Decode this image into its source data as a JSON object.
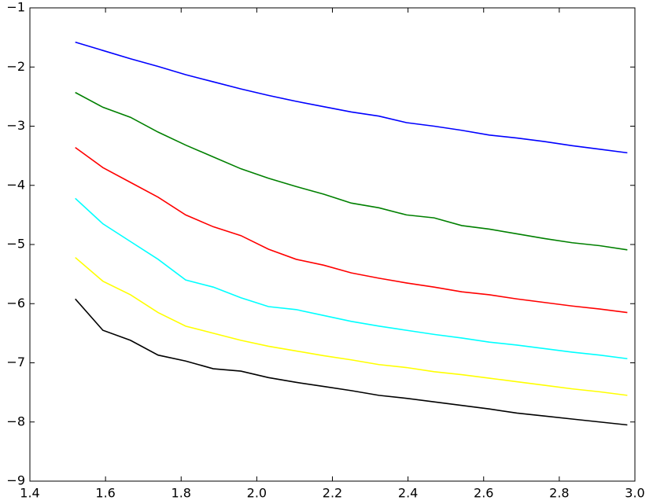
{
  "chart_data": {
    "type": "line",
    "x": [
      1.52,
      1.593,
      1.666,
      1.739,
      1.812,
      1.885,
      1.958,
      2.031,
      2.104,
      2.177,
      2.25,
      2.323,
      2.396,
      2.469,
      2.542,
      2.615,
      2.688,
      2.761,
      2.834,
      2.907,
      2.98
    ],
    "series": [
      {
        "color": "#0000ff",
        "values": [
          -1.58,
          -1.72,
          -1.86,
          -1.99,
          -2.13,
          -2.25,
          -2.37,
          -2.48,
          -2.58,
          -2.67,
          -2.76,
          -2.83,
          -2.94,
          -3.0,
          -3.07,
          -3.15,
          -3.2,
          -3.26,
          -3.33,
          -3.39,
          -3.45
        ]
      },
      {
        "color": "#008000",
        "values": [
          -2.43,
          -2.68,
          -2.85,
          -3.1,
          -3.32,
          -3.52,
          -3.72,
          -3.88,
          -4.02,
          -4.15,
          -4.3,
          -4.38,
          -4.5,
          -4.55,
          -4.68,
          -4.74,
          -4.82,
          -4.9,
          -4.97,
          -5.02,
          -5.09
        ]
      },
      {
        "color": "#ff0000",
        "values": [
          -3.36,
          -3.7,
          -3.95,
          -4.2,
          -4.5,
          -4.7,
          -4.85,
          -5.08,
          -5.25,
          -5.35,
          -5.48,
          -5.57,
          -5.65,
          -5.72,
          -5.8,
          -5.85,
          -5.92,
          -5.98,
          -6.04,
          -6.09,
          -6.15
        ]
      },
      {
        "color": "#00ffff",
        "values": [
          -4.22,
          -4.65,
          -4.95,
          -5.25,
          -5.6,
          -5.72,
          -5.9,
          -6.05,
          -6.1,
          -6.2,
          -6.3,
          -6.38,
          -6.45,
          -6.52,
          -6.58,
          -6.65,
          -6.7,
          -6.76,
          -6.82,
          -6.87,
          -6.93
        ]
      },
      {
        "color": "#ffff00",
        "values": [
          -5.22,
          -5.62,
          -5.85,
          -6.15,
          -6.38,
          -6.5,
          -6.62,
          -6.72,
          -6.8,
          -6.88,
          -6.95,
          -7.03,
          -7.08,
          -7.15,
          -7.2,
          -7.26,
          -7.32,
          -7.38,
          -7.44,
          -7.49,
          -7.55
        ]
      },
      {
        "color": "#000000",
        "values": [
          -5.92,
          -6.45,
          -6.62,
          -6.87,
          -6.97,
          -7.1,
          -7.14,
          -7.25,
          -7.33,
          -7.4,
          -7.47,
          -7.55,
          -7.6,
          -7.66,
          -7.72,
          -7.78,
          -7.85,
          -7.9,
          -7.95,
          -8.0,
          -8.05
        ]
      }
    ],
    "xlim": [
      1.4,
      3.0
    ],
    "xticks": [
      1.4,
      1.6,
      1.8,
      {
        "value": 2.0,
        "label": "2.0"
      },
      2.2,
      2.4,
      2.6,
      2.8,
      {
        "value": 3.0,
        "label": "3.0"
      }
    ],
    "ylim": [
      -9,
      -1
    ],
    "yticks": [
      {
        "value": -9,
        "label": "−9"
      },
      {
        "value": -8,
        "label": "−8"
      },
      {
        "value": -7,
        "label": "−7"
      },
      {
        "value": -6,
        "label": "−6"
      },
      {
        "value": -5,
        "label": "−5"
      },
      {
        "value": -4,
        "label": "−4"
      },
      {
        "value": -3,
        "label": "−3"
      },
      {
        "value": -2,
        "label": "−2"
      },
      {
        "value": -1,
        "label": "−1"
      }
    ],
    "grid": false
  }
}
